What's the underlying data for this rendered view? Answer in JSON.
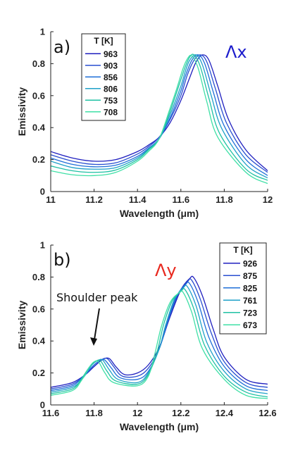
{
  "chart_data": [
    {
      "type": "line",
      "panel_label": "a)",
      "annotation": "Λx",
      "annotation_color": "#1c1ccc",
      "xlabel": "Wavelength (μm)",
      "ylabel": "Emissivity",
      "xlim": [
        11,
        12
      ],
      "ylim": [
        0,
        1
      ],
      "xticks": [
        11,
        11.2,
        11.4,
        11.6,
        11.8,
        12
      ],
      "xtick_labels": [
        "11",
        "11.2",
        "11.4",
        "11.6",
        "11.8",
        "12"
      ],
      "yticks": [
        0,
        0.2,
        0.4,
        0.6,
        0.8,
        1
      ],
      "ytick_labels": [
        "0",
        "0.2",
        "0.4",
        "0.6",
        "0.8",
        "1"
      ],
      "legend_title": "T [K]",
      "legend_position": "top-left",
      "series": [
        {
          "name": "963",
          "color": "#1f1fbf",
          "x": [
            11,
            11.1,
            11.2,
            11.3,
            11.4,
            11.45,
            11.5,
            11.55,
            11.6,
            11.64,
            11.67,
            11.7,
            11.73,
            11.77,
            11.82,
            11.9,
            12
          ],
          "y": [
            0.25,
            0.21,
            0.19,
            0.2,
            0.25,
            0.29,
            0.34,
            0.43,
            0.57,
            0.71,
            0.81,
            0.855,
            0.82,
            0.66,
            0.45,
            0.26,
            0.13
          ]
        },
        {
          "name": "903",
          "color": "#2a4fd0",
          "x": [
            11,
            11.1,
            11.2,
            11.3,
            11.4,
            11.45,
            11.5,
            11.55,
            11.6,
            11.63,
            11.66,
            11.69,
            11.72,
            11.76,
            11.81,
            11.9,
            12
          ],
          "y": [
            0.23,
            0.19,
            0.17,
            0.18,
            0.235,
            0.28,
            0.34,
            0.45,
            0.6,
            0.73,
            0.82,
            0.855,
            0.81,
            0.64,
            0.43,
            0.23,
            0.12
          ]
        },
        {
          "name": "856",
          "color": "#1f6fd8",
          "x": [
            11,
            11.1,
            11.2,
            11.3,
            11.4,
            11.45,
            11.5,
            11.55,
            11.6,
            11.62,
            11.65,
            11.68,
            11.71,
            11.75,
            11.8,
            11.9,
            12
          ],
          "y": [
            0.21,
            0.17,
            0.155,
            0.165,
            0.22,
            0.27,
            0.33,
            0.46,
            0.63,
            0.72,
            0.82,
            0.855,
            0.8,
            0.62,
            0.41,
            0.2,
            0.1
          ]
        },
        {
          "name": "806",
          "color": "#1fa0c8",
          "x": [
            11,
            11.1,
            11.2,
            11.3,
            11.4,
            11.45,
            11.5,
            11.55,
            11.6,
            11.62,
            11.64,
            11.67,
            11.7,
            11.74,
            11.79,
            11.9,
            12
          ],
          "y": [
            0.19,
            0.15,
            0.14,
            0.15,
            0.21,
            0.265,
            0.33,
            0.48,
            0.66,
            0.75,
            0.82,
            0.855,
            0.79,
            0.6,
            0.39,
            0.17,
            0.085
          ]
        },
        {
          "name": "753",
          "color": "#1fc1a3",
          "x": [
            11,
            11.1,
            11.2,
            11.3,
            11.4,
            11.45,
            11.5,
            11.55,
            11.6,
            11.62,
            11.64,
            11.66,
            11.69,
            11.73,
            11.78,
            11.9,
            12
          ],
          "y": [
            0.16,
            0.13,
            0.12,
            0.135,
            0.2,
            0.26,
            0.33,
            0.5,
            0.7,
            0.78,
            0.84,
            0.855,
            0.78,
            0.58,
            0.36,
            0.14,
            0.07
          ]
        },
        {
          "name": "708",
          "color": "#3fe0a6",
          "x": [
            11,
            11.1,
            11.2,
            11.3,
            11.4,
            11.45,
            11.5,
            11.55,
            11.58,
            11.61,
            11.63,
            11.65,
            11.68,
            11.72,
            11.77,
            11.9,
            12
          ],
          "y": [
            0.13,
            0.105,
            0.1,
            0.12,
            0.19,
            0.25,
            0.33,
            0.52,
            0.64,
            0.77,
            0.83,
            0.85,
            0.77,
            0.56,
            0.34,
            0.12,
            0.05
          ]
        }
      ]
    },
    {
      "type": "line",
      "panel_label": "b)",
      "annotation": "Λy",
      "annotation_color": "#e8281e",
      "text_annotation": "Shoulder peak",
      "xlabel": "Wavelength (μm)",
      "ylabel": "Emissivity",
      "xlim": [
        11.6,
        12.6
      ],
      "ylim": [
        0,
        1
      ],
      "xticks": [
        11.6,
        11.8,
        12,
        12.2,
        12.4,
        12.6
      ],
      "xtick_labels": [
        "11.6",
        "11.8",
        "12",
        "12.2",
        "12.4",
        "12.6"
      ],
      "yticks": [
        0,
        0.2,
        0.4,
        0.6,
        0.8,
        1
      ],
      "ytick_labels": [
        "0",
        "0.2",
        "0.4",
        "0.6",
        "0.8",
        "1"
      ],
      "legend_title": "T [K]",
      "legend_position": "top-right",
      "series": [
        {
          "name": "926",
          "color": "#1f1fbf",
          "x": [
            11.6,
            11.7,
            11.76,
            11.8,
            11.84,
            11.87,
            11.9,
            11.94,
            12,
            12.05,
            12.1,
            12.15,
            12.2,
            12.24,
            12.26,
            12.3,
            12.35,
            12.4,
            12.5,
            12.6
          ],
          "y": [
            0.11,
            0.14,
            0.19,
            0.24,
            0.285,
            0.29,
            0.24,
            0.19,
            0.2,
            0.25,
            0.36,
            0.55,
            0.72,
            0.79,
            0.795,
            0.68,
            0.47,
            0.3,
            0.16,
            0.13
          ]
        },
        {
          "name": "875",
          "color": "#2a4fd0",
          "x": [
            11.6,
            11.7,
            11.76,
            11.8,
            11.83,
            11.86,
            11.89,
            11.93,
            12,
            12.05,
            12.1,
            12.15,
            12.19,
            12.23,
            12.25,
            12.29,
            12.34,
            12.4,
            12.5,
            12.6
          ],
          "y": [
            0.1,
            0.13,
            0.19,
            0.25,
            0.28,
            0.29,
            0.24,
            0.18,
            0.18,
            0.23,
            0.35,
            0.56,
            0.7,
            0.77,
            0.78,
            0.66,
            0.45,
            0.27,
            0.14,
            0.11
          ]
        },
        {
          "name": "825",
          "color": "#1f6fd8",
          "x": [
            11.6,
            11.7,
            11.75,
            11.8,
            11.83,
            11.85,
            11.88,
            11.92,
            12,
            12.05,
            12.1,
            12.14,
            12.18,
            12.22,
            12.24,
            12.28,
            12.33,
            12.4,
            12.5,
            12.6
          ],
          "y": [
            0.09,
            0.12,
            0.18,
            0.25,
            0.28,
            0.28,
            0.23,
            0.17,
            0.16,
            0.21,
            0.35,
            0.53,
            0.68,
            0.75,
            0.76,
            0.64,
            0.42,
            0.24,
            0.12,
            0.09
          ]
        },
        {
          "name": "761",
          "color": "#1fa0c8",
          "x": [
            11.6,
            11.7,
            11.75,
            11.79,
            11.82,
            11.84,
            11.87,
            11.91,
            12,
            12.05,
            12.1,
            12.13,
            12.17,
            12.21,
            12.23,
            12.27,
            12.32,
            12.4,
            12.5,
            12.6
          ],
          "y": [
            0.08,
            0.11,
            0.17,
            0.25,
            0.28,
            0.28,
            0.22,
            0.16,
            0.14,
            0.2,
            0.35,
            0.5,
            0.66,
            0.73,
            0.74,
            0.62,
            0.39,
            0.21,
            0.1,
            0.07
          ]
        },
        {
          "name": "723",
          "color": "#1fc1a3",
          "x": [
            11.6,
            11.7,
            11.74,
            11.78,
            11.81,
            11.83,
            11.86,
            11.9,
            12,
            12.05,
            12.09,
            12.12,
            12.16,
            12.2,
            12.22,
            12.26,
            12.31,
            12.4,
            12.5,
            12.6
          ],
          "y": [
            0.07,
            0.1,
            0.16,
            0.24,
            0.275,
            0.275,
            0.21,
            0.15,
            0.13,
            0.19,
            0.33,
            0.5,
            0.65,
            0.71,
            0.72,
            0.6,
            0.37,
            0.18,
            0.08,
            0.05
          ]
        },
        {
          "name": "673",
          "color": "#3fe0a6",
          "x": [
            11.6,
            11.7,
            11.74,
            11.78,
            11.8,
            11.82,
            11.85,
            11.89,
            12,
            12.05,
            12.08,
            12.11,
            12.15,
            12.19,
            12.21,
            12.25,
            12.3,
            12.4,
            12.5,
            12.6
          ],
          "y": [
            0.06,
            0.09,
            0.15,
            0.24,
            0.27,
            0.27,
            0.2,
            0.14,
            0.12,
            0.18,
            0.32,
            0.49,
            0.64,
            0.7,
            0.705,
            0.58,
            0.35,
            0.16,
            0.06,
            0.04
          ]
        }
      ]
    }
  ]
}
